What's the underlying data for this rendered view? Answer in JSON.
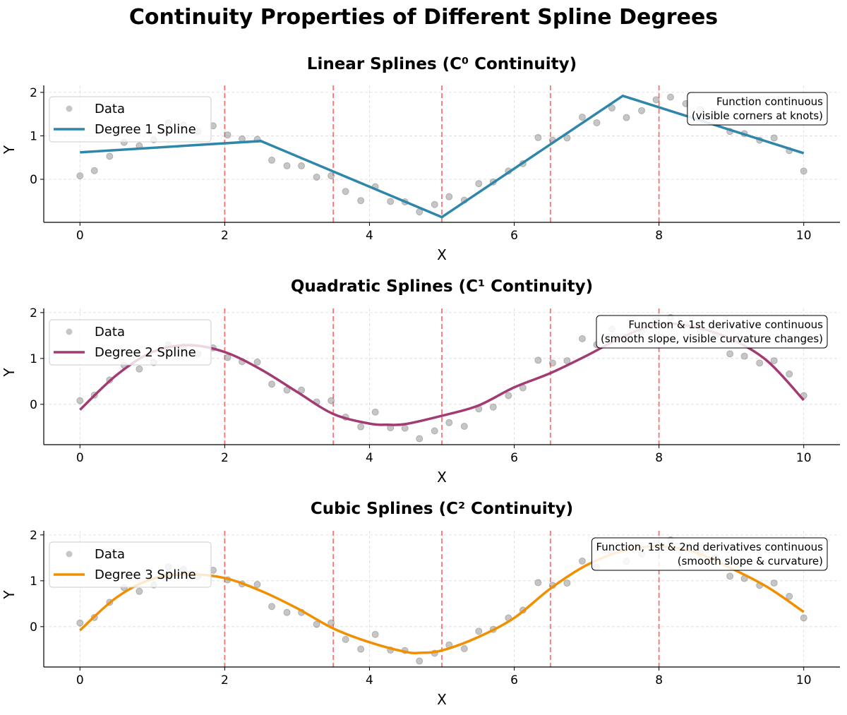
{
  "figure_title": "Continuity Properties of Different Spline Degrees",
  "chart_data": [
    {
      "type": "line",
      "title": "Linear Splines (C⁰ Continuity)",
      "xlabel": "X",
      "ylabel": "Y",
      "xlim": [
        -0.5,
        10.5
      ],
      "ylim": [
        -0.99,
        2.16
      ],
      "xticks": [
        0,
        2,
        4,
        6,
        8,
        10
      ],
      "yticks": [
        0,
        1,
        2
      ],
      "grid": true,
      "legend_position": "top-left",
      "knots": [
        2,
        3.5,
        5,
        6.5,
        8
      ],
      "knot_color": "#ff5a5a",
      "annotation": [
        "Function continuous",
        "(visible corners at knots)"
      ],
      "scatter": {
        "name": "Data",
        "color": "#808080",
        "x": [
          0,
          0.2,
          0.41,
          0.61,
          0.82,
          1.02,
          1.22,
          1.43,
          1.63,
          1.84,
          2.04,
          2.24,
          2.45,
          2.65,
          2.86,
          3.06,
          3.27,
          3.47,
          3.67,
          3.88,
          4.08,
          4.29,
          4.49,
          4.69,
          4.9,
          5.1,
          5.31,
          5.51,
          5.71,
          5.92,
          6.12,
          6.33,
          6.53,
          6.73,
          6.94,
          7.14,
          7.35,
          7.55,
          7.76,
          7.96,
          8.16,
          8.37,
          8.57,
          8.78,
          8.98,
          9.18,
          9.39,
          9.59,
          9.8,
          10
        ],
        "y": [
          0.08,
          0.2,
          0.53,
          0.85,
          0.77,
          0.91,
          1.3,
          1.25,
          1.1,
          1.23,
          1.02,
          0.93,
          0.92,
          0.44,
          0.31,
          0.31,
          0.05,
          0.08,
          -0.28,
          -0.49,
          -0.17,
          -0.51,
          -0.52,
          -0.75,
          -0.58,
          -0.4,
          -0.48,
          -0.1,
          -0.06,
          0.19,
          0.36,
          0.96,
          0.9,
          0.95,
          1.43,
          1.3,
          1.64,
          1.42,
          1.58,
          1.83,
          1.89,
          1.74,
          1.6,
          1.5,
          1.1,
          1.05,
          0.9,
          0.95,
          0.66,
          0.19
        ]
      },
      "line": {
        "name": "Degree 1 Spline",
        "color": "#2e86ab",
        "smooth": false,
        "x": [
          0,
          2.5,
          5,
          7.5,
          10
        ],
        "y": [
          0.62,
          0.88,
          -0.87,
          1.92,
          0.6
        ]
      }
    },
    {
      "type": "line",
      "title": "Quadratic Splines (C¹ Continuity)",
      "xlabel": "X",
      "ylabel": "Y",
      "xlim": [
        -0.5,
        10.5
      ],
      "ylim": [
        -0.88,
        2.09
      ],
      "xticks": [
        0,
        2,
        4,
        6,
        8,
        10
      ],
      "yticks": [
        0,
        1,
        2
      ],
      "grid": true,
      "legend_position": "top-left",
      "knots": [
        2,
        3.5,
        5,
        6.5,
        8
      ],
      "knot_color": "#ff5a5a",
      "annotation": [
        "Function & 1st derivative continuous",
        "(smooth slope, visible curvature changes)"
      ],
      "scatter": {
        "name": "Data",
        "color": "#808080",
        "x": [
          0,
          0.2,
          0.41,
          0.61,
          0.82,
          1.02,
          1.22,
          1.43,
          1.63,
          1.84,
          2.04,
          2.24,
          2.45,
          2.65,
          2.86,
          3.06,
          3.27,
          3.47,
          3.67,
          3.88,
          4.08,
          4.29,
          4.49,
          4.69,
          4.9,
          5.1,
          5.31,
          5.51,
          5.71,
          5.92,
          6.12,
          6.33,
          6.53,
          6.73,
          6.94,
          7.14,
          7.35,
          7.55,
          7.76,
          7.96,
          8.16,
          8.37,
          8.57,
          8.78,
          8.98,
          9.18,
          9.39,
          9.59,
          9.8,
          10
        ],
        "y": [
          0.08,
          0.2,
          0.53,
          0.85,
          0.77,
          0.91,
          1.3,
          1.25,
          1.1,
          1.23,
          1.02,
          0.93,
          0.92,
          0.44,
          0.31,
          0.31,
          0.05,
          0.08,
          -0.28,
          -0.49,
          -0.17,
          -0.51,
          -0.52,
          -0.75,
          -0.58,
          -0.4,
          -0.48,
          -0.1,
          -0.06,
          0.19,
          0.36,
          0.96,
          0.9,
          0.95,
          1.43,
          1.3,
          1.64,
          1.42,
          1.58,
          1.83,
          1.89,
          1.74,
          1.6,
          1.5,
          1.1,
          1.05,
          0.9,
          0.95,
          0.66,
          0.19
        ]
      },
      "line": {
        "name": "Degree 2 Spline",
        "color": "#a23b72",
        "smooth": true,
        "x": [
          0,
          0.5,
          1,
          1.5,
          2,
          2.5,
          3,
          3.5,
          4,
          4.25,
          4.5,
          5,
          5.5,
          6,
          6.5,
          7,
          7.5,
          8,
          8.5,
          9,
          9.5,
          10
        ],
        "y": [
          -0.12,
          0.63,
          1.14,
          1.29,
          1.14,
          0.76,
          0.27,
          -0.21,
          -0.42,
          -0.445,
          -0.43,
          -0.25,
          -0.03,
          0.37,
          0.68,
          1.06,
          1.47,
          1.75,
          1.68,
          1.42,
          0.94,
          0.09
        ]
      }
    },
    {
      "type": "line",
      "title": "Cubic Splines (C² Continuity)",
      "xlabel": "X",
      "ylabel": "Y",
      "xlim": [
        -0.5,
        10.5
      ],
      "ylim": [
        -0.88,
        2.09
      ],
      "xticks": [
        0,
        2,
        4,
        6,
        8,
        10
      ],
      "yticks": [
        0,
        1,
        2
      ],
      "grid": true,
      "legend_position": "top-left",
      "knots": [
        2,
        3.5,
        5,
        6.5,
        8
      ],
      "knot_color": "#ff5a5a",
      "annotation": [
        "Function, 1st & 2nd derivatives continuous",
        "(smooth slope & curvature)"
      ],
      "scatter": {
        "name": "Data",
        "color": "#808080",
        "x": [
          0,
          0.2,
          0.41,
          0.61,
          0.82,
          1.02,
          1.22,
          1.43,
          1.63,
          1.84,
          2.04,
          2.24,
          2.45,
          2.65,
          2.86,
          3.06,
          3.27,
          3.47,
          3.67,
          3.88,
          4.08,
          4.29,
          4.49,
          4.69,
          4.9,
          5.1,
          5.31,
          5.51,
          5.71,
          5.92,
          6.12,
          6.33,
          6.53,
          6.73,
          6.94,
          7.14,
          7.35,
          7.55,
          7.76,
          7.96,
          8.16,
          8.37,
          8.57,
          8.78,
          8.98,
          9.18,
          9.39,
          9.59,
          9.8,
          10
        ],
        "y": [
          0.08,
          0.2,
          0.53,
          0.85,
          0.77,
          0.91,
          1.3,
          1.25,
          1.1,
          1.23,
          1.02,
          0.93,
          0.92,
          0.44,
          0.31,
          0.31,
          0.05,
          0.08,
          -0.28,
          -0.49,
          -0.17,
          -0.51,
          -0.52,
          -0.75,
          -0.58,
          -0.4,
          -0.48,
          -0.1,
          -0.06,
          0.19,
          0.36,
          0.96,
          0.9,
          0.95,
          1.43,
          1.3,
          1.64,
          1.42,
          1.58,
          1.83,
          1.89,
          1.74,
          1.6,
          1.5,
          1.1,
          1.05,
          0.9,
          0.95,
          0.66,
          0.19
        ]
      },
      "line": {
        "name": "Degree 3 Spline",
        "color": "#f18f01",
        "smooth": true,
        "x": [
          0,
          0.5,
          1,
          1.5,
          2,
          2.5,
          3,
          3.5,
          4,
          4.5,
          4.7,
          5,
          5.5,
          6,
          6.5,
          7,
          7.5,
          8,
          8.5,
          9,
          9.5,
          10
        ],
        "y": [
          -0.08,
          0.63,
          1.04,
          1.14,
          1.06,
          0.78,
          0.4,
          -0.04,
          -0.34,
          -0.55,
          -0.57,
          -0.52,
          -0.23,
          0.19,
          0.83,
          1.34,
          1.65,
          1.75,
          1.62,
          1.27,
          0.86,
          0.32
        ]
      }
    }
  ]
}
